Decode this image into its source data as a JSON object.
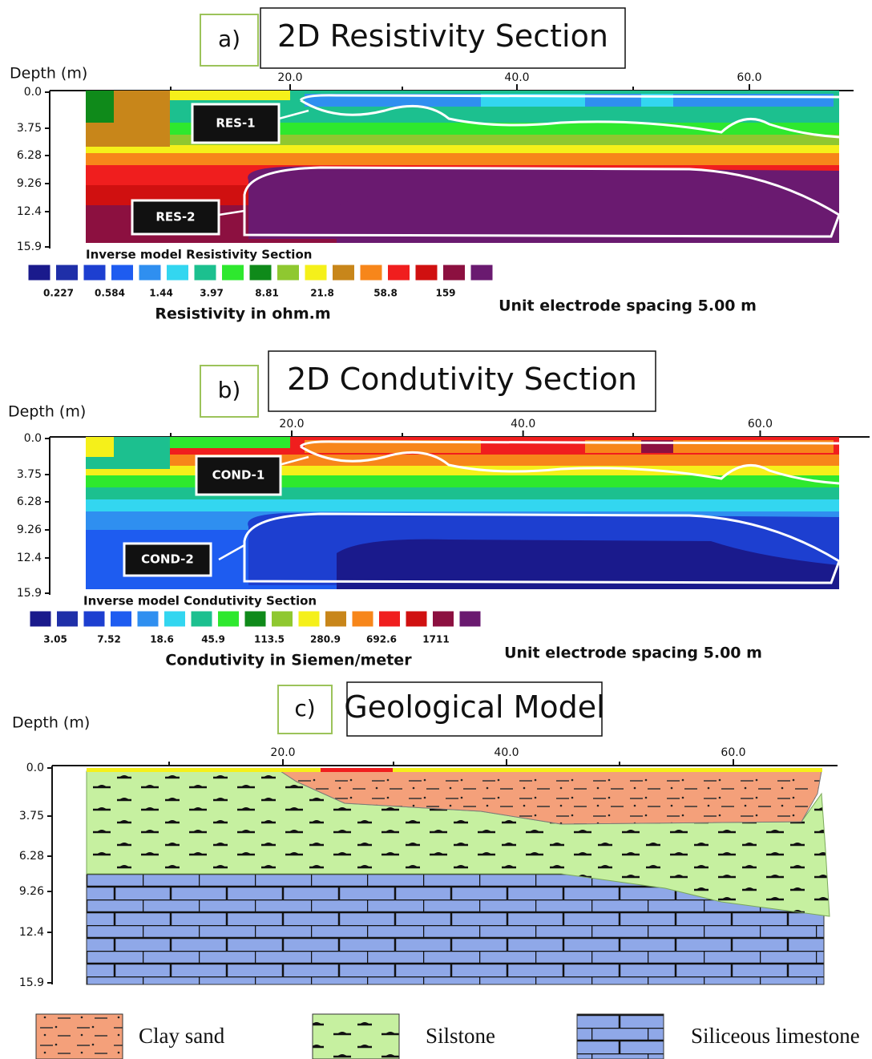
{
  "panels": [
    {
      "letter": "a)",
      "title": "2D Resistivity Section",
      "y_axis_label": "Depth (m)",
      "x_ticks": [
        "20.0",
        "40.0",
        "60.0"
      ],
      "depth_ticks": [
        "0.0",
        "3.75",
        "6.28",
        "9.26",
        "12.4",
        "15.9"
      ],
      "zones": [
        "RES-1",
        "RES-2"
      ],
      "legend_title": "Inverse model  Resistivity Section",
      "scale_labels": [
        "0.227",
        "0.584",
        "1.44",
        "3.97",
        "8.81",
        "21.8",
        "58.8",
        "159"
      ],
      "scale_caption": "Resistivity in ohm.m",
      "spacing": "Unit electrode spacing 5.00 m"
    },
    {
      "letter": "b)",
      "title": "2D Condutivity Section",
      "y_axis_label": "Depth (m)",
      "x_ticks": [
        "20.0",
        "40.0",
        "60.0"
      ],
      "depth_ticks": [
        "0.0",
        "3.75",
        "6.28",
        "9.26",
        "12.4",
        "15.9"
      ],
      "zones": [
        "COND-1",
        "COND-2"
      ],
      "legend_title": "Inverse model  Condutivity Section",
      "scale_labels": [
        "3.05",
        "7.52",
        "18.6",
        "45.9",
        "113.5",
        "280.9",
        "692.6",
        "1711"
      ],
      "scale_caption": "Condutivity in Siemen/meter",
      "spacing": "Unit electrode spacing 5.00 m"
    }
  ],
  "geology": {
    "letter": "c)",
    "title": "Geological Model",
    "y_axis_label": "Depth (m)",
    "x_ticks": [
      "20.0",
      "40.0",
      "60.0"
    ],
    "depth_ticks": [
      "0.0",
      "3.75",
      "6.28",
      "9.26",
      "12.4",
      "15.9"
    ],
    "legend": [
      "Clay sand",
      "Silstone",
      "Siliceous limestone"
    ]
  }
}
